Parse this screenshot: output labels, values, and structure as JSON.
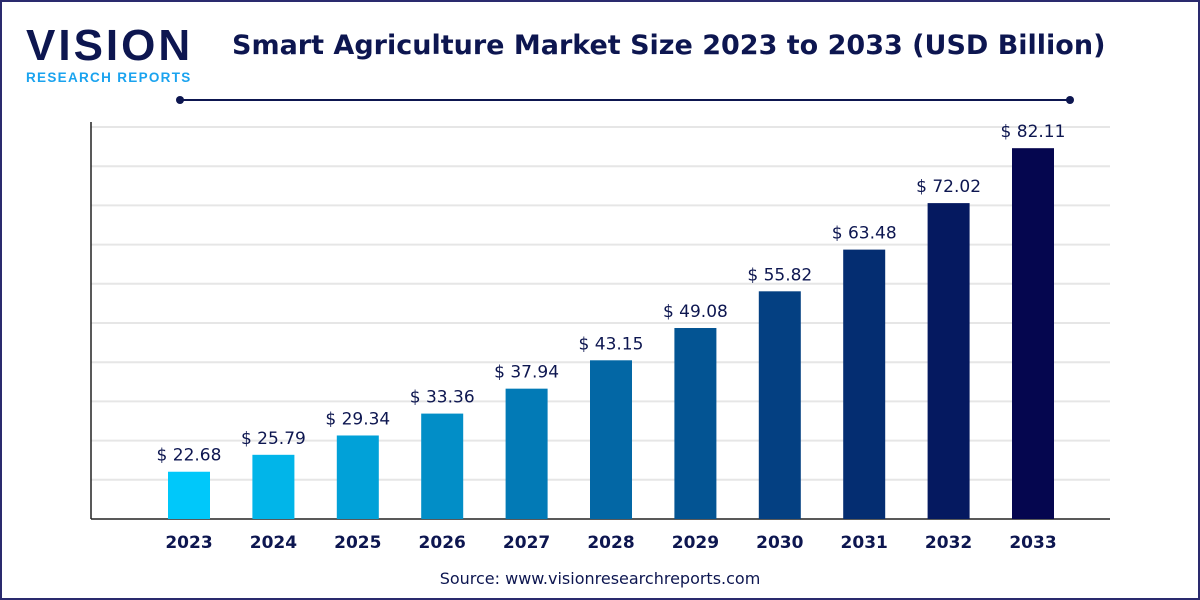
{
  "logo": {
    "main": "VISION",
    "sub": "RESEARCH REPORTS"
  },
  "title": "Smart Agriculture Market Size 2023 to 2033 (USD Billion)",
  "source": "Source: www.visionresearchreports.com",
  "colors": {
    "text": "#0d1650",
    "bar_start": "#00c8fa",
    "bar_end": "#05064f",
    "grid": "#e6e6e6"
  },
  "chart_data": {
    "type": "bar",
    "title": "Smart Agriculture Market Size 2023 to 2033 (USD Billion)",
    "categories": [
      "2023",
      "2024",
      "2025",
      "2026",
      "2027",
      "2028",
      "2029",
      "2030",
      "2031",
      "2032",
      "2033"
    ],
    "values": [
      22.68,
      25.79,
      29.34,
      33.36,
      37.94,
      43.15,
      49.08,
      55.82,
      63.48,
      72.02,
      82.11
    ],
    "labels": [
      "$ 22.68",
      "$ 25.79",
      "$ 29.34",
      "$ 33.36",
      "$ 37.94",
      "$ 43.15",
      "$ 49.08",
      "$ 55.82",
      "$ 63.48",
      "$ 72.02",
      "$ 82.11"
    ],
    "ylim": [
      14,
      86
    ],
    "grid": true,
    "legend": "none"
  }
}
